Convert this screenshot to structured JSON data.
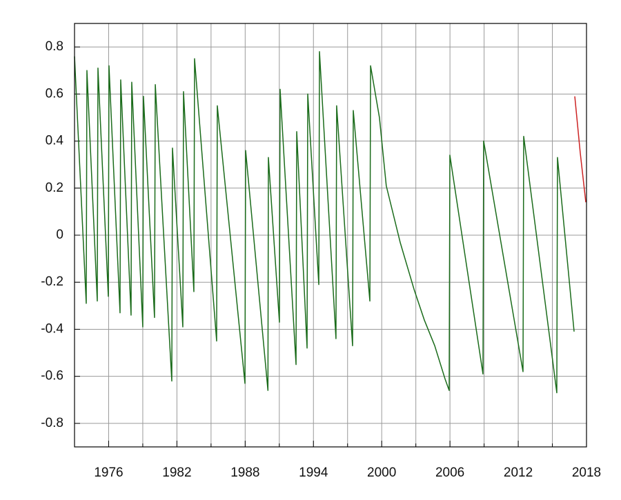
{
  "chart_data": {
    "type": "line",
    "xlim": [
      1973,
      2018
    ],
    "xticks": [
      1976,
      1982,
      1988,
      1994,
      2000,
      2006,
      2012,
      2018
    ],
    "x_minor_ticks": [
      1979,
      1985,
      1991,
      1997,
      2003,
      2009,
      2015
    ],
    "ylim": [
      -0.9,
      0.9
    ],
    "yticks": [
      -0.8,
      -0.6,
      -0.4,
      -0.2,
      0,
      0.2,
      0.4,
      0.6,
      0.8
    ],
    "grid": true,
    "series": [
      {
        "color": "#1a6b1a",
        "x": [
          1973.0,
          1974.03,
          1974.09,
          1975.0,
          1975.06,
          1975.97,
          1976.03,
          1977.0,
          1977.06,
          1977.97,
          1978.03,
          1979.0,
          1979.06,
          1980.03,
          1980.1,
          1981.55,
          1981.61,
          1982.52,
          1982.58,
          1983.49,
          1983.55,
          1985.49,
          1985.55,
          1987.98,
          1988.04,
          1990.0,
          1990.04,
          1991.01,
          1991.07,
          1992.47,
          1992.53,
          1993.44,
          1993.5,
          1994.47,
          1994.53,
          1995.98,
          1996.04,
          1997.44,
          1997.5,
          1998.96,
          1999.02,
          1999.8,
          2000.4,
          2001.62,
          2002.84,
          2003.74,
          2004.66,
          2005.56,
          2005.93,
          2005.99,
          2008.9,
          2008.96,
          2012.42,
          2012.48,
          2015.39,
          2015.45,
          2016.91
        ],
        "values": [
          0.76,
          -0.29,
          0.7,
          -0.28,
          0.71,
          -0.26,
          0.72,
          -0.33,
          0.66,
          -0.34,
          0.65,
          -0.39,
          0.59,
          -0.35,
          0.64,
          -0.62,
          0.37,
          -0.39,
          0.61,
          -0.24,
          0.75,
          -0.45,
          0.55,
          -0.63,
          0.36,
          -0.66,
          0.33,
          -0.37,
          0.62,
          -0.55,
          0.44,
          -0.48,
          0.6,
          -0.21,
          0.78,
          -0.44,
          0.55,
          -0.47,
          0.53,
          -0.28,
          0.72,
          0.5,
          0.21,
          -0.03,
          -0.23,
          -0.36,
          -0.47,
          -0.61,
          -0.66,
          0.34,
          -0.59,
          0.4,
          -0.58,
          0.42,
          -0.67,
          0.33,
          -0.41
        ]
      },
      {
        "color": "#cc2222",
        "x": [
          2016.97,
          2017.45,
          2017.94
        ],
        "values": [
          0.59,
          0.35,
          0.14
        ]
      }
    ]
  }
}
